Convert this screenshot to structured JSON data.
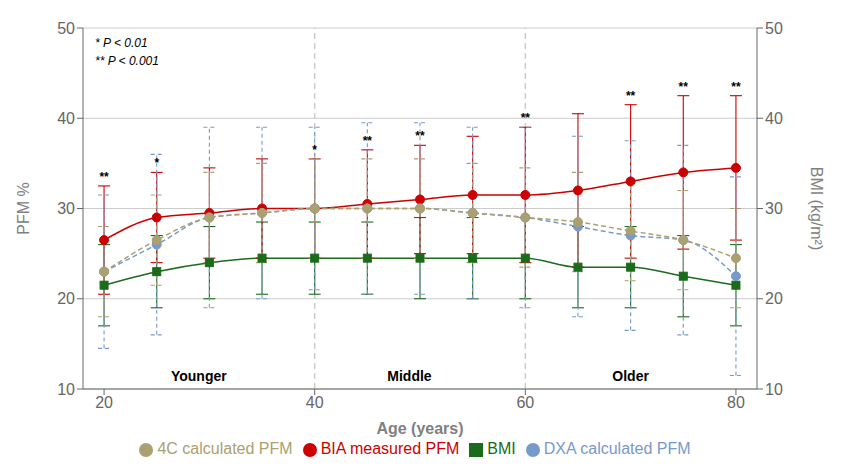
{
  "chart_data": {
    "type": "line",
    "x": [
      20,
      25,
      30,
      35,
      40,
      45,
      50,
      55,
      60,
      65,
      70,
      75,
      80
    ],
    "xlabel": "Age (years)",
    "ylabel": "PFM %",
    "y2label": "BMI (kg/m²)",
    "xlim": [
      18,
      82
    ],
    "xticks": [
      20,
      40,
      60,
      80
    ],
    "ylim": [
      10,
      50
    ],
    "yticks": [
      10,
      20,
      30,
      40,
      50
    ],
    "y2lim": [
      10,
      50
    ],
    "y2ticks": [
      10,
      20,
      30,
      40,
      50
    ],
    "grid": true,
    "legend": "bottom",
    "series": [
      {
        "name": "BMI",
        "axis": "y2",
        "color": "#1a6b1a",
        "marker": "square",
        "line_style": "solid",
        "values": [
          21.5,
          23.0,
          24.0,
          24.5,
          24.5,
          24.5,
          24.5,
          24.5,
          24.5,
          23.5,
          23.5,
          22.5,
          21.5
        ],
        "errors": [
          4.5,
          4.0,
          4.0,
          4.0,
          4.0,
          4.0,
          4.5,
          4.5,
          4.5,
          4.5,
          4.5,
          4.5,
          4.5
        ]
      },
      {
        "name": "BIA measured PFM",
        "color": "#cc0000",
        "marker": "circle",
        "line_style": "solid",
        "values": [
          26.5,
          29.0,
          29.5,
          30.0,
          30.0,
          30.5,
          31.0,
          31.5,
          31.5,
          32.0,
          33.0,
          34.0,
          34.5
        ],
        "errors": [
          6.0,
          5.0,
          5.0,
          5.5,
          5.5,
          6.0,
          6.0,
          6.5,
          7.5,
          8.5,
          8.5,
          8.5,
          8.0
        ],
        "significance": [
          "**",
          "*",
          null,
          null,
          "*",
          "**",
          "**",
          null,
          "**",
          null,
          "**",
          "**",
          "**"
        ]
      },
      {
        "name": "DXA calculated PFM",
        "color": "#7799cc",
        "marker": "circle",
        "line_style": "dashed",
        "values": [
          23.0,
          26.0,
          29.0,
          29.5,
          30.0,
          30.0,
          30.0,
          29.5,
          29.0,
          28.0,
          27.0,
          26.5,
          22.5
        ],
        "errors": [
          8.5,
          10.0,
          10.0,
          9.5,
          9.0,
          9.5,
          9.5,
          9.5,
          10.0,
          10.0,
          10.5,
          10.5,
          11.0
        ]
      },
      {
        "name": "4C calculated PFM",
        "color": "#aaa070",
        "marker": "circle",
        "line_style": "dashed",
        "values": [
          23.0,
          26.5,
          29.0,
          29.5,
          30.0,
          30.0,
          30.0,
          29.5,
          29.0,
          28.5,
          27.5,
          26.5,
          24.5
        ],
        "errors": [
          5.0,
          5.0,
          5.0,
          5.5,
          5.5,
          5.5,
          5.5,
          5.5,
          5.5,
          5.5,
          5.5,
          5.5,
          5.5
        ]
      }
    ],
    "dividers": [
      40,
      60
    ],
    "group_labels": [
      {
        "x": 29,
        "text": "Younger"
      },
      {
        "x": 49,
        "text": "Middle"
      },
      {
        "x": 70,
        "text": "Older"
      }
    ],
    "annotations": [
      "* P < 0.01",
      "** P < 0.001"
    ]
  }
}
